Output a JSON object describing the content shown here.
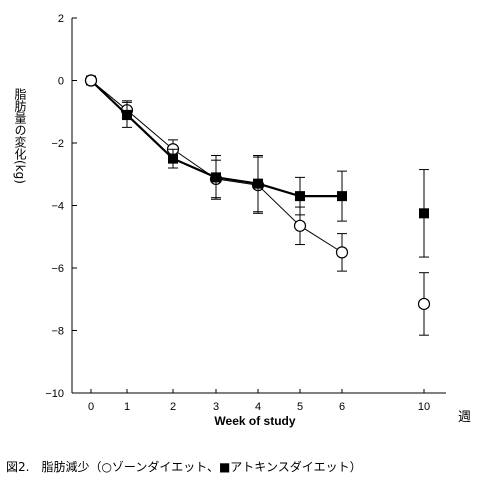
{
  "caption": "図2.　脂肪減少（○ゾーンダイエット、■アトキンスダイエット）",
  "chart_data": {
    "type": "line",
    "xlabel": "Week of study",
    "x_unit_label": "週",
    "ylabel": "脂肪量の変化(kg)",
    "ylim": [
      -10,
      2
    ],
    "yticks": [
      "2",
      "0",
      "−2",
      "−4",
      "−6",
      "−8",
      "−10"
    ],
    "ytick_values": [
      2,
      0,
      -2,
      -4,
      -6,
      -8,
      -10
    ],
    "xticks": [
      "0",
      "1",
      "2",
      "3",
      "4",
      "5",
      "6",
      "10"
    ],
    "xtick_values": [
      0,
      1,
      2,
      3,
      4,
      5,
      6,
      10
    ],
    "grid": false,
    "series": [
      {
        "marker": "open-circle",
        "color": "#000000",
        "x": [
          0,
          1,
          2,
          3,
          4,
          5,
          6,
          10
        ],
        "y": [
          0,
          -0.95,
          -2.2,
          -3.15,
          -3.35,
          -4.65,
          -5.5,
          -7.15
        ],
        "err": [
          0,
          0.3,
          0.3,
          0.6,
          0.9,
          0.6,
          0.6,
          1.0
        ],
        "connected_through": 6
      },
      {
        "marker": "filled-square",
        "color": "#000000",
        "x": [
          0,
          1,
          2,
          3,
          4,
          5,
          6,
          10
        ],
        "y": [
          0,
          -1.1,
          -2.5,
          -3.1,
          -3.3,
          -3.7,
          -3.7,
          -4.25
        ],
        "err": [
          0,
          0.4,
          0.3,
          0.7,
          0.9,
          0.6,
          0.8,
          1.4
        ],
        "connected_through": 6
      }
    ]
  }
}
